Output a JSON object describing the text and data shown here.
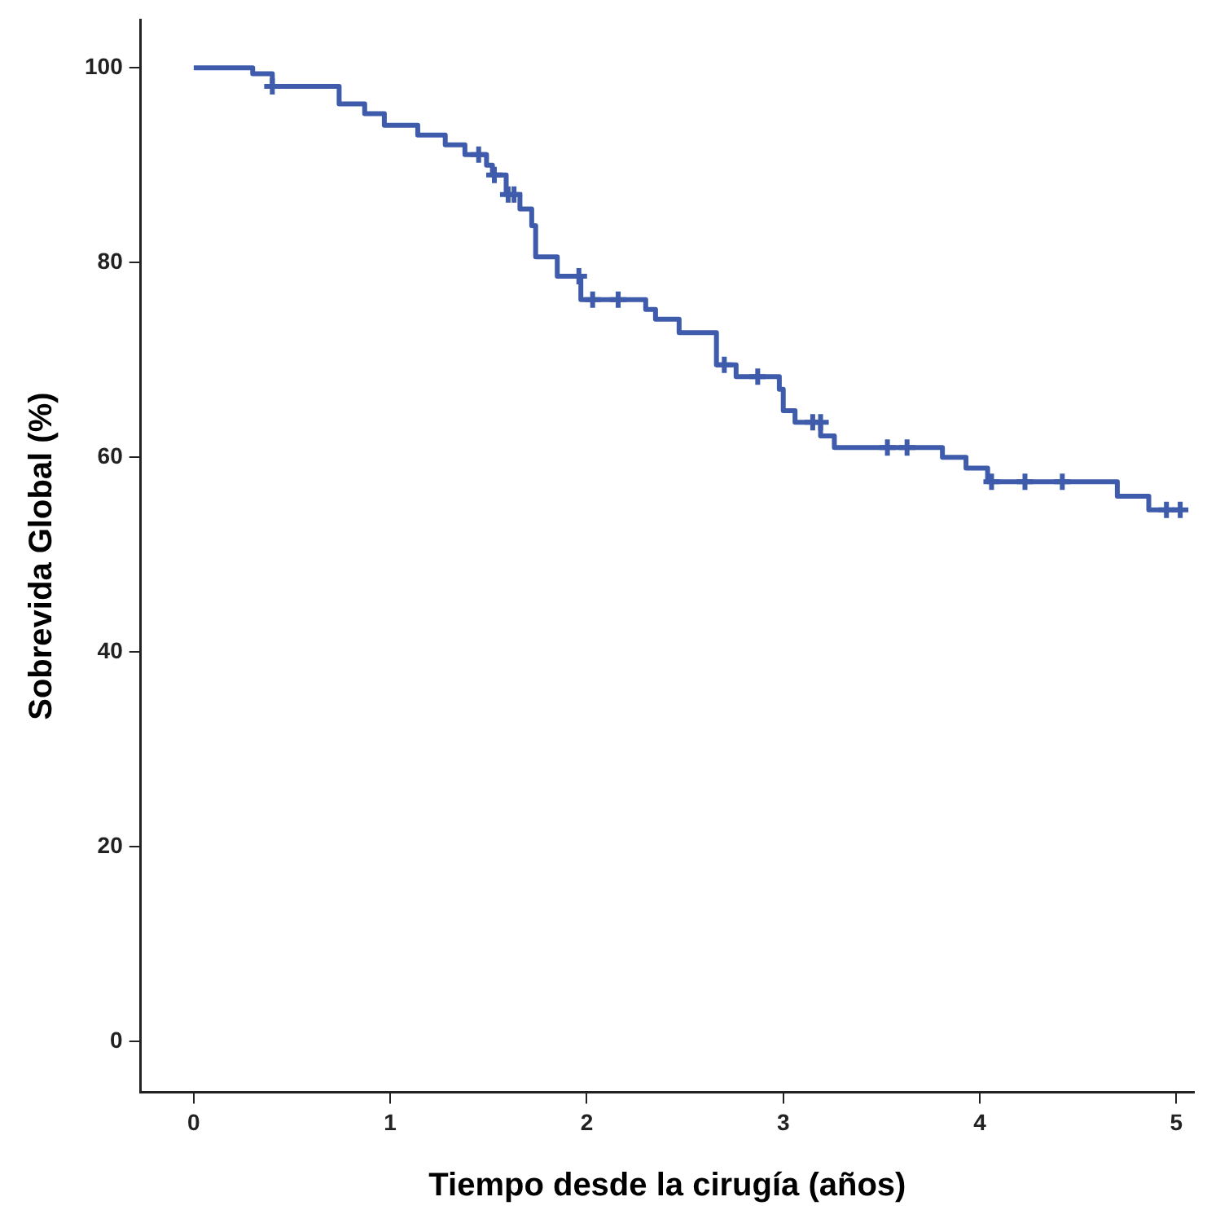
{
  "chart_data": {
    "type": "step",
    "xlabel": "Tiempo desde la cirugía (años)",
    "ylabel": "Sobrevida Global (%)",
    "xlim": [
      -0.27,
      5.09
    ],
    "ylim": [
      -5.2,
      104.9
    ],
    "xticks": [
      0,
      1,
      2,
      3,
      4,
      5
    ],
    "yticks": [
      0,
      20,
      40,
      60,
      80,
      100
    ],
    "grid": false,
    "legend": false,
    "series": [
      {
        "color": "#3f5bab",
        "marker": "none",
        "x": [
          0,
          0.3,
          0.4,
          0.74,
          0.87,
          0.97,
          1.14,
          1.28,
          1.38,
          1.49,
          1.52,
          1.59,
          1.66,
          1.72,
          1.74,
          1.85,
          1.97,
          2.3,
          2.35,
          2.47,
          2.66,
          2.76,
          2.98,
          3.0,
          3.06,
          3.19,
          3.26,
          3.81,
          3.93,
          4.04,
          4.7,
          4.86,
          5.03
        ],
        "values": [
          100,
          99.4,
          98.1,
          96.3,
          95.3,
          94.1,
          93.1,
          92.1,
          91.1,
          90.0,
          89.0,
          87.0,
          85.5,
          83.8,
          80.6,
          78.6,
          76.2,
          75.2,
          74.2,
          72.8,
          69.5,
          68.3,
          67.0,
          64.8,
          63.6,
          62.2,
          61.0,
          60.0,
          58.9,
          57.5,
          56.0,
          54.6,
          54.6
        ]
      },
      {
        "type": "scatter",
        "color": "#3f5bab",
        "marker": "cross",
        "x": [
          0.4,
          1.45,
          1.53,
          1.6,
          1.63,
          1.96,
          2.03,
          2.16,
          2.7,
          2.87,
          3.15,
          3.19,
          3.53,
          3.63,
          4.06,
          4.23,
          4.42,
          4.95,
          5.02
        ],
        "values": [
          98.1,
          91.1,
          89.0,
          87.0,
          87.0,
          78.6,
          76.2,
          76.2,
          69.5,
          68.3,
          63.6,
          63.6,
          61.0,
          61.0,
          57.5,
          57.5,
          57.5,
          54.6,
          54.6
        ]
      }
    ]
  }
}
